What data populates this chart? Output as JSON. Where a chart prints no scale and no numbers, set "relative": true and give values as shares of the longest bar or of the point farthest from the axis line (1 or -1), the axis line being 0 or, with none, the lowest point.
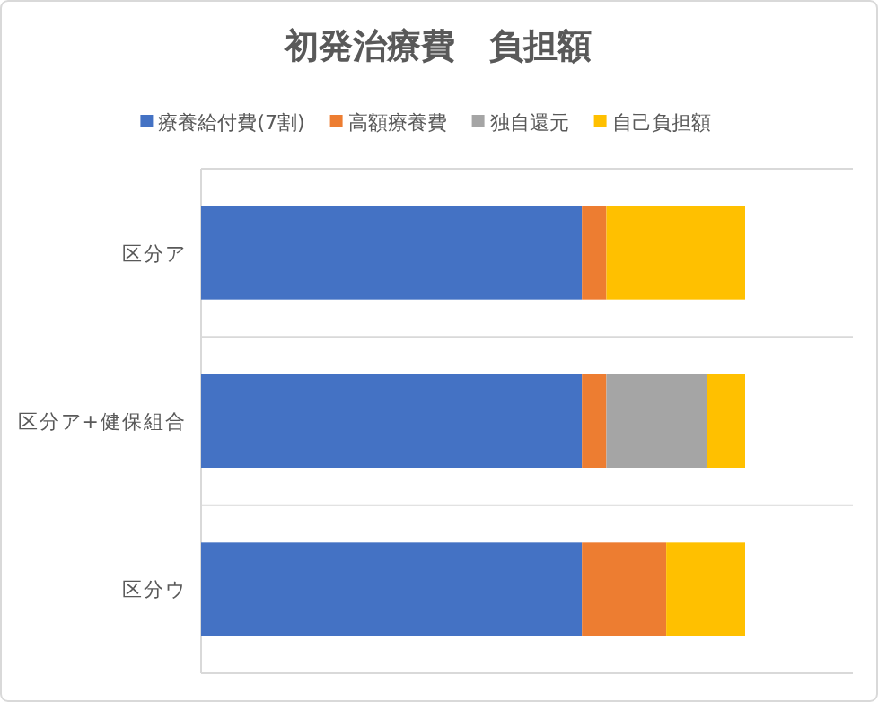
{
  "chart_data": {
    "type": "bar",
    "orientation": "horizontal",
    "stacked": true,
    "relative": true,
    "title": "初発治療費　負担額",
    "categories": [
      "区分ア",
      "区分ア+健保組合",
      "区分ウ"
    ],
    "series": [
      {
        "name": "療養給付費(7割)",
        "color": "#4472c4",
        "values": [
          0.7,
          0.7,
          0.7
        ]
      },
      {
        "name": "高額療養費",
        "color": "#ed7d31",
        "values": [
          0.045,
          0.045,
          0.155
        ]
      },
      {
        "name": "独自還元",
        "color": "#a5a5a5",
        "values": [
          0,
          0.185,
          0
        ]
      },
      {
        "name": "自己負担額",
        "color": "#ffc000",
        "values": [
          0.255,
          0.07,
          0.145
        ]
      }
    ],
    "legend": "top",
    "grid": "y"
  }
}
